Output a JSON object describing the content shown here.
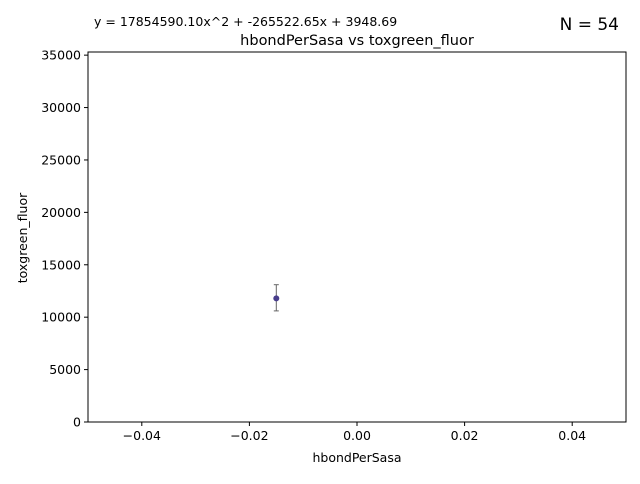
{
  "chart_data": {
    "type": "scatter",
    "title": "hbondPerSasa vs toxgreen_fluor",
    "xlabel": "hbondPerSasa",
    "ylabel": "toxgreen_fluor",
    "equation": "y = 17854590.10x^2 + -265522.65x + 3948.69",
    "n_label": "N = 54",
    "xlim": [
      -0.05,
      0.05
    ],
    "ylim": [
      0,
      35300
    ],
    "x_ticks": [
      -0.04,
      -0.02,
      0.0,
      0.02,
      0.04
    ],
    "x_tick_labels": [
      "−0.04",
      "−0.02",
      "0.00",
      "0.02",
      "0.04"
    ],
    "y_ticks": [
      0,
      5000,
      10000,
      15000,
      20000,
      25000,
      30000,
      35000
    ],
    "y_tick_labels": [
      "0",
      "5000",
      "10000",
      "15000",
      "20000",
      "25000",
      "30000",
      "35000"
    ],
    "grid": false,
    "points": [
      {
        "x": -0.015,
        "y": 11800,
        "err_low": 10600,
        "err_high": 13100
      }
    ],
    "colors": {
      "point": "#483d8b",
      "errorbar": "#666666",
      "axes": "#000000"
    }
  }
}
